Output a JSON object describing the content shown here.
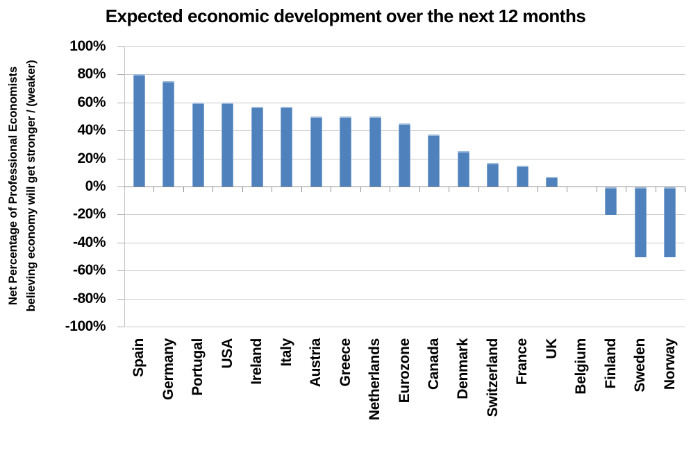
{
  "chart_data": {
    "type": "bar",
    "title": "Expected economic development over the next 12 months",
    "ylabel_line1": "Net Percentage of Professional Economists",
    "ylabel_line2": "believing economy will get stronger / (weaker)",
    "categories": [
      "Spain",
      "Germany",
      "Portugal",
      "USA",
      "Ireland",
      "Italy",
      "Austria",
      "Greece",
      "Netherlands",
      "Eurozone",
      "Canada",
      "Denmark",
      "Switzerland",
      "France",
      "UK",
      "Belgium",
      "Finland",
      "Sweden",
      "Norway"
    ],
    "values": [
      80,
      75,
      60,
      60,
      57,
      57,
      50,
      50,
      50,
      45,
      37,
      25,
      17,
      15,
      7,
      0,
      -20,
      -50,
      -50
    ],
    "xlabel": "",
    "ylabel": "Net Percentage of Professional Economists believing economy will get stronger / (weaker)",
    "ylim": [
      -100,
      100
    ],
    "ytick_step": 20,
    "yticks": [
      "100%",
      "80%",
      "60%",
      "40%",
      "20%",
      "0%",
      "-20%",
      "-40%",
      "-60%",
      "-80%",
      "-100%"
    ],
    "grid": true,
    "legend": "none",
    "bar_color": "#4F81BD"
  },
  "colors": {
    "bar": "#4F81BD",
    "gridline": "#C8C8C8",
    "axis_line": "#C4C4C4",
    "zero_line": "#8E8E8E",
    "y_tick": "#ABABAB",
    "text": "#000000",
    "background": "#FFFFFF"
  }
}
